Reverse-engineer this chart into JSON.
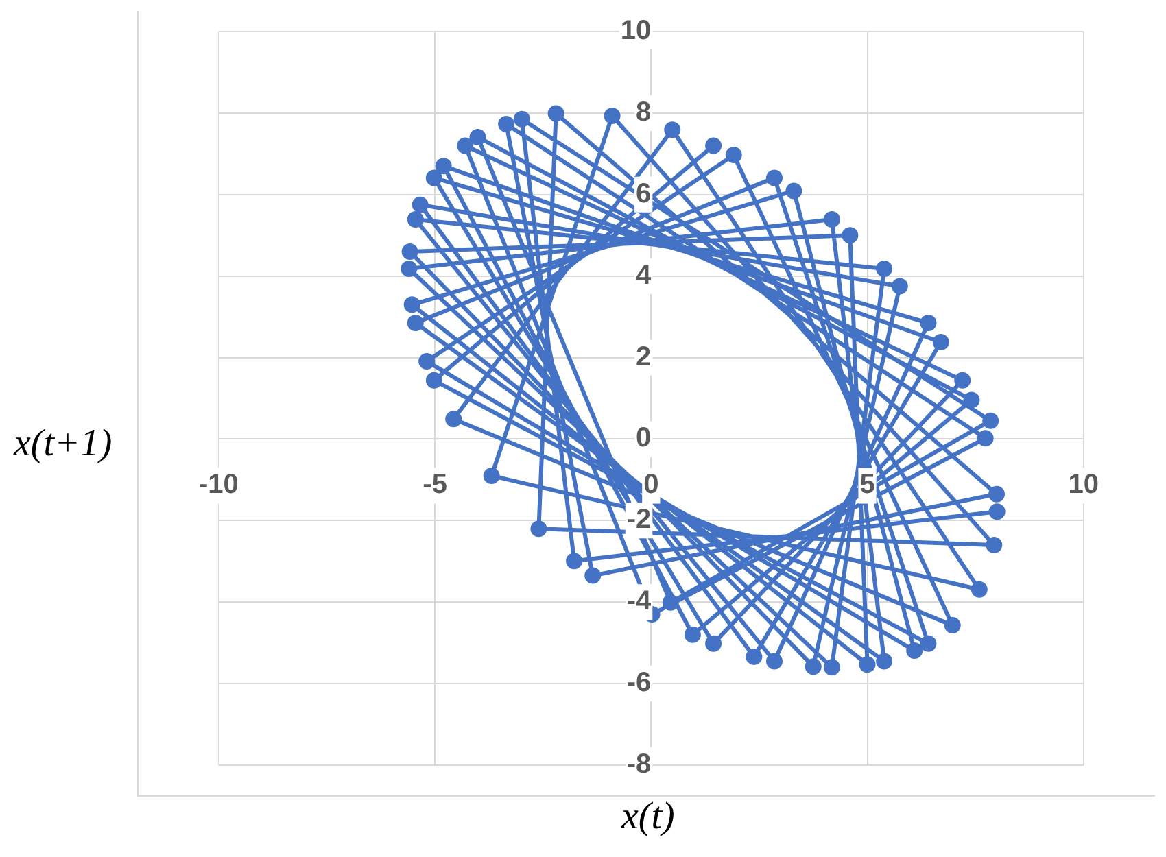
{
  "chart_data": {
    "type": "line",
    "xlabel": "x(t)",
    "ylabel": "x(t+1)",
    "xlim": [
      -10,
      10
    ],
    "xticks": [
      -10,
      -5,
      0,
      5,
      10
    ],
    "ylim": [
      -8,
      10
    ],
    "yticks": [
      -8,
      -6,
      -4,
      -2,
      0,
      2,
      4,
      6,
      8,
      10
    ],
    "grid": true,
    "marker": "circle",
    "line_style": "solid",
    "series": [
      {
        "color": "#4472c4",
        "x": [
          8.0,
          -1.78,
          -2.99,
          7.85,
          0.45,
          -4.01,
          7.41,
          0.96,
          -4.8,
          6.7,
          2.38,
          -5.34,
          5.75,
          3.75,
          -5.58,
          4.6,
          5.0,
          -5.53,
          3.3,
          6.09,
          -5.19,
          1.91,
          6.97,
          -4.57,
          0.49,
          7.59,
          -3.69,
          -0.9,
          7.93,
          -2.6,
          -2.2,
          7.99,
          -1.35,
          -3.35,
          7.73,
          0.02,
          -4.3,
          7.2,
          1.44,
          -5.02,
          6.41,
          2.85,
          -5.45,
          5.39,
          4.18,
          -5.6,
          4.18,
          5.39,
          -5.45,
          2.85,
          6.41,
          -5.02,
          1.44
        ],
        "values": [
          -1.78,
          -2.99,
          7.85,
          0.45,
          -4.01,
          7.41,
          0.96,
          -4.8,
          6.7,
          2.38,
          -5.34,
          5.75,
          3.75,
          -5.58,
          4.6,
          5.0,
          -5.53,
          3.3,
          6.09,
          -5.19,
          1.91,
          6.97,
          -4.57,
          0.49,
          7.59,
          -3.69,
          -0.9,
          7.93,
          -2.6,
          -2.2,
          7.99,
          -1.35,
          -3.35,
          7.73,
          0.02,
          -4.3,
          7.2,
          1.44,
          -5.02,
          6.41,
          2.85,
          -5.45,
          5.39,
          4.18,
          -5.6,
          4.18,
          5.39,
          -5.45,
          2.85,
          6.41,
          -5.02,
          1.44,
          7.2
        ]
      }
    ]
  }
}
